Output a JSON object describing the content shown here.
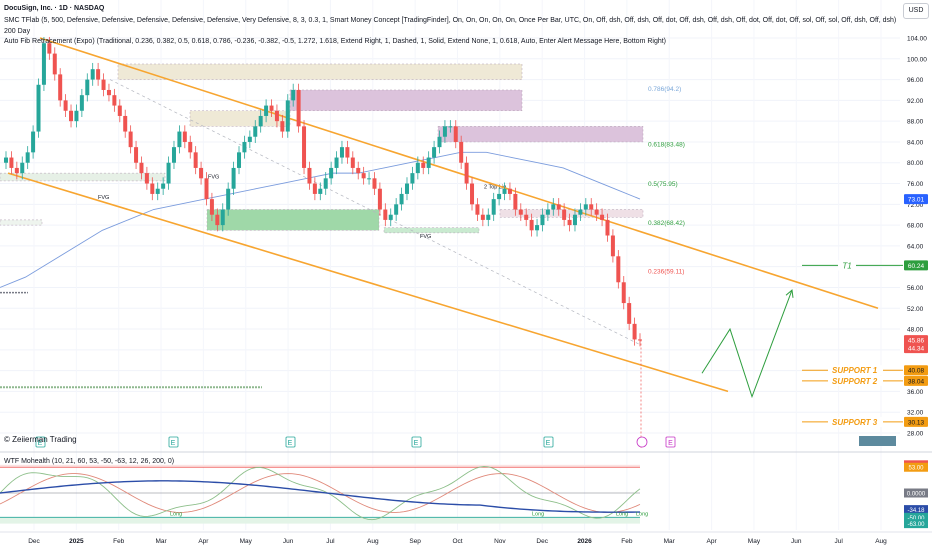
{
  "header": {
    "line1": "DocuSign, Inc. · 1D · NASDAQ",
    "line2": "SMC TFlab (5, 500, Defensive, Defensive, Defensive, Defensive, Defensive, Very Defensive, 8, 3, 0.3, 1, Smart Money Concept [TradingFinder], On, On, On, On, On, Once Per Bar, UTC, On, Off, dsh, Off, dsh, Off, dot, Off, dsh, Off, dsh, Off, dot, Off, dot, Off, sol, Off, sol, Off, dsh, Off, dsh)",
    "line3": "200 Day",
    "line4": "Auto Fib Retracement (Expo) (Traditional, 0.236, 0.382, 0.5, 0.618, 0.786, -0.236, -0.382, -0.5, 1.272, 1.618, Extend Right, 1, Dashed, 1, Solid, Extend None, 1, 0.618, Auto, Enter Alert Message Here, Bottom Right)"
  },
  "currency": "USD",
  "copyright": "© Zeiierman Trading",
  "indicator_label": "WTF Mohealth (10, 21, 60, 53, -50, -63, 12, 26, 200, 0)",
  "colors": {
    "candle_up": "#26a69a",
    "candle_down": "#ef5350",
    "channel": "#f7a530",
    "sma200": "#7b9cdd",
    "projection": "#2e9e3e",
    "support_label": "#f39c12",
    "fib_text": "#2e9e3e",
    "supply_zone": "#c8a8c8",
    "demand_zone": "#9fd8a8"
  },
  "chart_data": {
    "type": "candlestick",
    "symbol": "DocuSign, Inc.",
    "interval": "1D",
    "exchange": "NASDAQ",
    "x_ticks": [
      "Dec",
      "2025",
      "Feb",
      "Mar",
      "Apr",
      "May",
      "Jun",
      "Jul",
      "Aug",
      "Sep",
      "Oct",
      "Nov",
      "Dec",
      "2026",
      "Feb",
      "Mar",
      "Apr",
      "May",
      "Jun",
      "Jul",
      "Aug"
    ],
    "y_ticks": [
      28.0,
      32.0,
      36.0,
      40.0,
      44.0,
      48.0,
      52.0,
      56.0,
      60.0,
      64.0,
      68.0,
      72.0,
      76.0,
      80.0,
      84.0,
      88.0,
      92.0,
      96.0,
      100.0,
      104.0
    ],
    "ylim": [
      26,
      108
    ],
    "closes": [
      81,
      79,
      78,
      80,
      82,
      86,
      95,
      103,
      101,
      97,
      92,
      90,
      88,
      90,
      93,
      96,
      98,
      96,
      94,
      93,
      91,
      89,
      86,
      83,
      80,
      78,
      76,
      74,
      75,
      76,
      80,
      83,
      86,
      84,
      82,
      79,
      77,
      73,
      70,
      68,
      71,
      75,
      79,
      82,
      84,
      85,
      87,
      89,
      91,
      90,
      88,
      86,
      92,
      94,
      87,
      79,
      76,
      74,
      75,
      77,
      79,
      81,
      83,
      81,
      79,
      78,
      77,
      77,
      75,
      71,
      69,
      70,
      72,
      74,
      76,
      78,
      80,
      79,
      81,
      83,
      85,
      87,
      87,
      84,
      80,
      76,
      72,
      70,
      69,
      70,
      73,
      74,
      75,
      74,
      71,
      70,
      69,
      67,
      68,
      70,
      71,
      72,
      71,
      69,
      68,
      70,
      71,
      72,
      71,
      70,
      69,
      66,
      62,
      57,
      53,
      49,
      46,
      45.86
    ],
    "price_labels": [
      {
        "label": "Last",
        "value": "45.86"
      },
      {
        "label": "Low",
        "value": "44.34"
      },
      {
        "label": "SMA 200",
        "value": "73.01"
      },
      {
        "label": "T1",
        "value": "60.24"
      },
      {
        "label": "SUPPORT 1",
        "value": "40.08"
      },
      {
        "label": "SUPPORT 2",
        "value": "38.04"
      },
      {
        "label": "SUPPORT 3",
        "value": "30.13"
      }
    ],
    "targets": [
      {
        "name": "T1",
        "value": 60.24
      }
    ],
    "supports": [
      {
        "name": "SUPPORT 1",
        "value": 40.08
      },
      {
        "name": "SUPPORT 2",
        "value": 38.04
      },
      {
        "name": "SUPPORT 3",
        "value": 30.13
      }
    ],
    "fib_levels": [
      {
        "label": "0.786(94.2)",
        "value": 94.2
      },
      {
        "label": "0.618(83.48)",
        "value": 83.48
      },
      {
        "label": "0.5(75.95)",
        "value": 75.95
      },
      {
        "label": "0.382(68.42)",
        "value": 68.42
      },
      {
        "label": "0.236(59.11)",
        "value": 59.11
      }
    ],
    "annotations": [
      "FVG",
      "FVG",
      "FVG",
      "2 Top Liq"
    ],
    "sma200": [
      56,
      58,
      61,
      64,
      67,
      69,
      71,
      72,
      73,
      74,
      75,
      76,
      77,
      78,
      78,
      79,
      80,
      81,
      82,
      82,
      81,
      80,
      79,
      77,
      75,
      73.01
    ],
    "oscillator": {
      "name": "WTF Mohealth",
      "y_ticks": [
        "57.98",
        "53.00",
        "0.0000",
        "-34.18",
        "-50.00",
        "-63.00"
      ],
      "levels": [
        57.98,
        53,
        0,
        -34.18,
        -50,
        -63
      ],
      "ylim": [
        -72,
        72
      ],
      "labels": [
        "Long",
        "Long",
        "Long",
        "Long"
      ]
    }
  }
}
